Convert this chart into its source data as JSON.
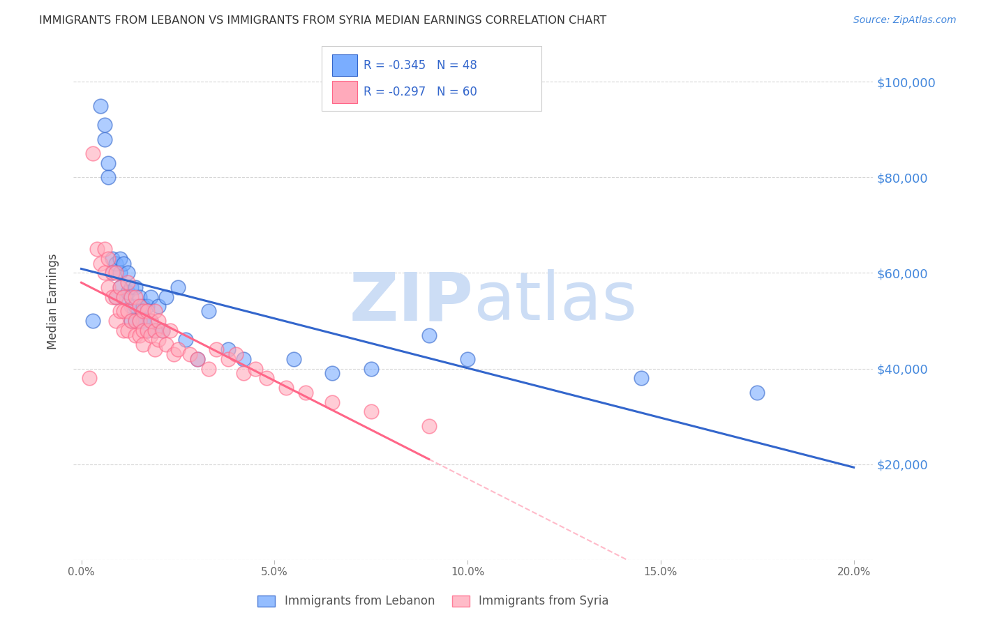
{
  "title": "IMMIGRANTS FROM LEBANON VS IMMIGRANTS FROM SYRIA MEDIAN EARNINGS CORRELATION CHART",
  "source": "Source: ZipAtlas.com",
  "ylabel": "Median Earnings",
  "xlabel_ticks": [
    "0.0%",
    "5.0%",
    "10.0%",
    "15.0%",
    "20.0%"
  ],
  "xlabel_vals": [
    0.0,
    0.05,
    0.1,
    0.15,
    0.2
  ],
  "ylabel_ticks": [
    0,
    20000,
    40000,
    60000,
    80000,
    100000
  ],
  "ylabel_labels": [
    "",
    "$20,000",
    "$40,000",
    "$60,000",
    "$80,000",
    "$100,000"
  ],
  "ylim": [
    0,
    108000
  ],
  "xlim": [
    -0.002,
    0.205
  ],
  "lebanon_color": "#7aadff",
  "syria_color": "#ffaabb",
  "lebanon_line_color": "#3366cc",
  "syria_line_color": "#ff6688",
  "watermark_color": "#ccddf5",
  "legend_R_lebanon": "-0.345",
  "legend_N_lebanon": "48",
  "legend_R_syria": "-0.297",
  "legend_N_syria": "60",
  "background_color": "#ffffff",
  "grid_color": "#cccccc",
  "title_color": "#333333",
  "right_axis_color": "#4488dd",
  "text_color": "#3366cc",
  "lebanon_x": [
    0.003,
    0.005,
    0.006,
    0.006,
    0.007,
    0.007,
    0.008,
    0.008,
    0.009,
    0.009,
    0.01,
    0.01,
    0.01,
    0.011,
    0.011,
    0.012,
    0.012,
    0.013,
    0.013,
    0.013,
    0.014,
    0.014,
    0.014,
    0.015,
    0.015,
    0.016,
    0.016,
    0.017,
    0.017,
    0.018,
    0.018,
    0.019,
    0.02,
    0.021,
    0.022,
    0.025,
    0.027,
    0.03,
    0.033,
    0.038,
    0.042,
    0.055,
    0.065,
    0.075,
    0.09,
    0.1,
    0.145,
    0.175
  ],
  "lebanon_y": [
    50000,
    95000,
    91000,
    88000,
    83000,
    80000,
    63000,
    60000,
    62000,
    55000,
    63000,
    60000,
    57000,
    62000,
    55000,
    60000,
    56000,
    57000,
    53000,
    50000,
    57000,
    53000,
    50000,
    55000,
    50000,
    53000,
    50000,
    53000,
    48000,
    55000,
    50000,
    48000,
    53000,
    48000,
    55000,
    57000,
    46000,
    42000,
    52000,
    44000,
    42000,
    42000,
    39000,
    40000,
    47000,
    42000,
    38000,
    35000
  ],
  "syria_x": [
    0.002,
    0.003,
    0.004,
    0.005,
    0.006,
    0.006,
    0.007,
    0.007,
    0.008,
    0.008,
    0.009,
    0.009,
    0.009,
    0.01,
    0.01,
    0.011,
    0.011,
    0.011,
    0.012,
    0.012,
    0.012,
    0.013,
    0.013,
    0.014,
    0.014,
    0.014,
    0.015,
    0.015,
    0.015,
    0.016,
    0.016,
    0.016,
    0.017,
    0.017,
    0.018,
    0.018,
    0.019,
    0.019,
    0.019,
    0.02,
    0.02,
    0.021,
    0.022,
    0.023,
    0.024,
    0.025,
    0.028,
    0.03,
    0.033,
    0.035,
    0.038,
    0.04,
    0.042,
    0.045,
    0.048,
    0.053,
    0.058,
    0.065,
    0.075,
    0.09
  ],
  "syria_y": [
    38000,
    85000,
    65000,
    62000,
    65000,
    60000,
    63000,
    57000,
    60000,
    55000,
    60000,
    55000,
    50000,
    57000,
    52000,
    55000,
    52000,
    48000,
    58000,
    52000,
    48000,
    55000,
    50000,
    55000,
    50000,
    47000,
    53000,
    50000,
    47000,
    52000,
    48000,
    45000,
    52000,
    48000,
    50000,
    47000,
    52000,
    48000,
    44000,
    50000,
    46000,
    48000,
    45000,
    48000,
    43000,
    44000,
    43000,
    42000,
    40000,
    44000,
    42000,
    43000,
    39000,
    40000,
    38000,
    36000,
    35000,
    33000,
    31000,
    28000
  ]
}
